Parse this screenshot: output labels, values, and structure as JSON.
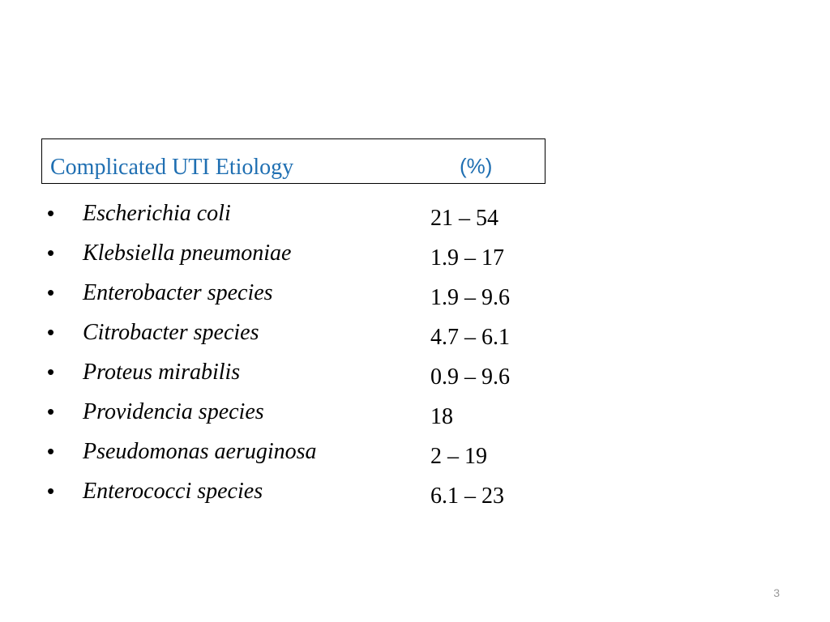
{
  "header": {
    "title": "Complicated UTI Etiology",
    "percent_label": "(%)",
    "accent_color": "#1f6fb2"
  },
  "bullet_char": "•",
  "rows": [
    {
      "organism": "Escherichia coli",
      "range": "21 – 54"
    },
    {
      "organism": "Klebsiella pneumoniae",
      "range": "1.9 – 17"
    },
    {
      "organism": "Enterobacter species",
      "range": "1.9 – 9.6"
    },
    {
      "organism": "Citrobacter species",
      "range": "4.7 – 6.1"
    },
    {
      "organism": "Proteus mirabilis",
      "range": "0.9 – 9.6"
    },
    {
      "organism": "Providencia species",
      "range": "18"
    },
    {
      "organism": "Pseudomonas aeruginosa",
      "range": "2 – 19"
    },
    {
      "organism": "Enterococci species",
      "range": "6.1 – 23"
    }
  ],
  "page_number": "3"
}
